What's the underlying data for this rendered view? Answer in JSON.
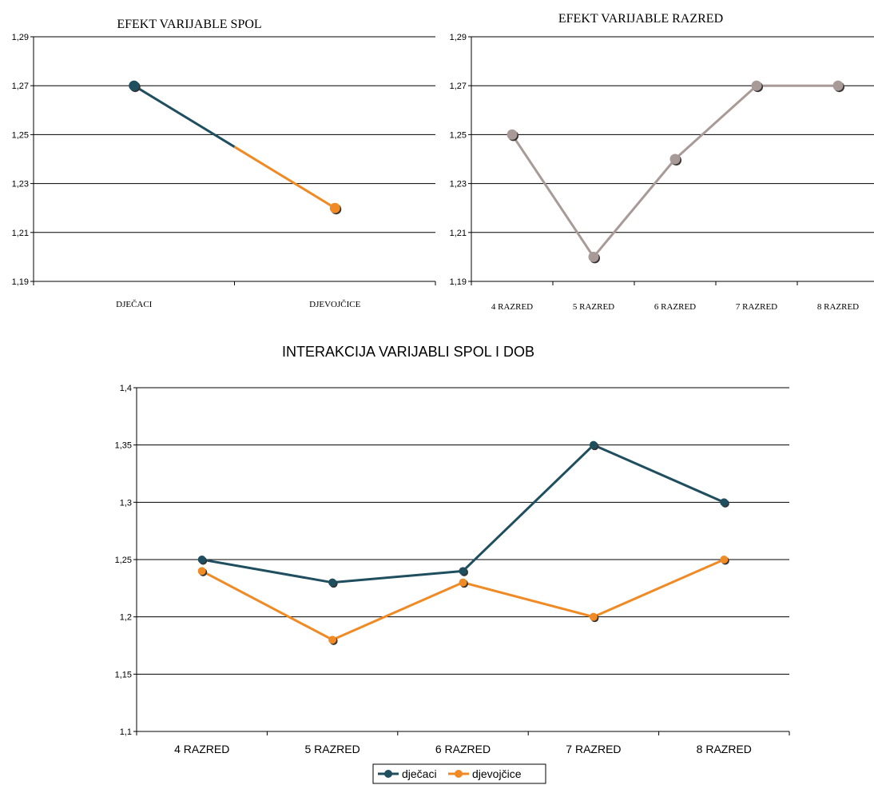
{
  "chart_data": [
    {
      "id": "spol",
      "type": "line",
      "title": "EFEKT VARIJABLE SPOL",
      "categories": [
        "DJEČACI",
        "DJEVOJČICE"
      ],
      "ylim": [
        1.19,
        1.29
      ],
      "yticks": [
        1.19,
        1.21,
        1.23,
        1.25,
        1.27,
        1.29
      ],
      "ytick_labels": [
        "1,19",
        "1,21",
        "1,23",
        "1,25",
        "1,27",
        "1,29"
      ],
      "grid": true,
      "series": [
        {
          "values": [
            1.27,
            1.22
          ],
          "point_colors": [
            "#1f4e5f",
            "#f08a24"
          ],
          "segment_colors": [
            "#1f4e5f",
            "#f08a24"
          ]
        }
      ]
    },
    {
      "id": "razred",
      "type": "line",
      "title": "EFEKT VARIJABLE RAZRED",
      "categories": [
        "4 RAZRED",
        "5 RAZRED",
        "6 RAZRED",
        "7 RAZRED",
        "8 RAZRED"
      ],
      "ylim": [
        1.19,
        1.29
      ],
      "yticks": [
        1.19,
        1.21,
        1.23,
        1.25,
        1.27,
        1.29
      ],
      "ytick_labels": [
        "1,19",
        "1,21",
        "1,23",
        "1,25",
        "1,27",
        "1,29"
      ],
      "grid": true,
      "series": [
        {
          "values": [
            1.25,
            1.2,
            1.24,
            1.27,
            1.27
          ],
          "color": "#a89a96"
        }
      ]
    },
    {
      "id": "interakcija",
      "type": "line",
      "title": "INTERAKCIJA VARIJABLI SPOL I DOB",
      "categories": [
        "4 RAZRED",
        "5 RAZRED",
        "6 RAZRED",
        "7 RAZRED",
        "8 RAZRED"
      ],
      "ylim": [
        1.1,
        1.4
      ],
      "yticks": [
        1.1,
        1.15,
        1.2,
        1.25,
        1.3,
        1.35,
        1.4
      ],
      "ytick_labels": [
        "1,1",
        "1,15",
        "1,2",
        "1,25",
        "1,3",
        "1,35",
        "1,4"
      ],
      "grid": true,
      "legend": "bottom",
      "series": [
        {
          "name": "dječaci",
          "values": [
            1.25,
            1.23,
            1.24,
            1.35,
            1.3
          ],
          "color": "#1f4e5f"
        },
        {
          "name": "djevojčice",
          "values": [
            1.24,
            1.18,
            1.23,
            1.2,
            1.25
          ],
          "color": "#f08a24"
        }
      ]
    }
  ]
}
